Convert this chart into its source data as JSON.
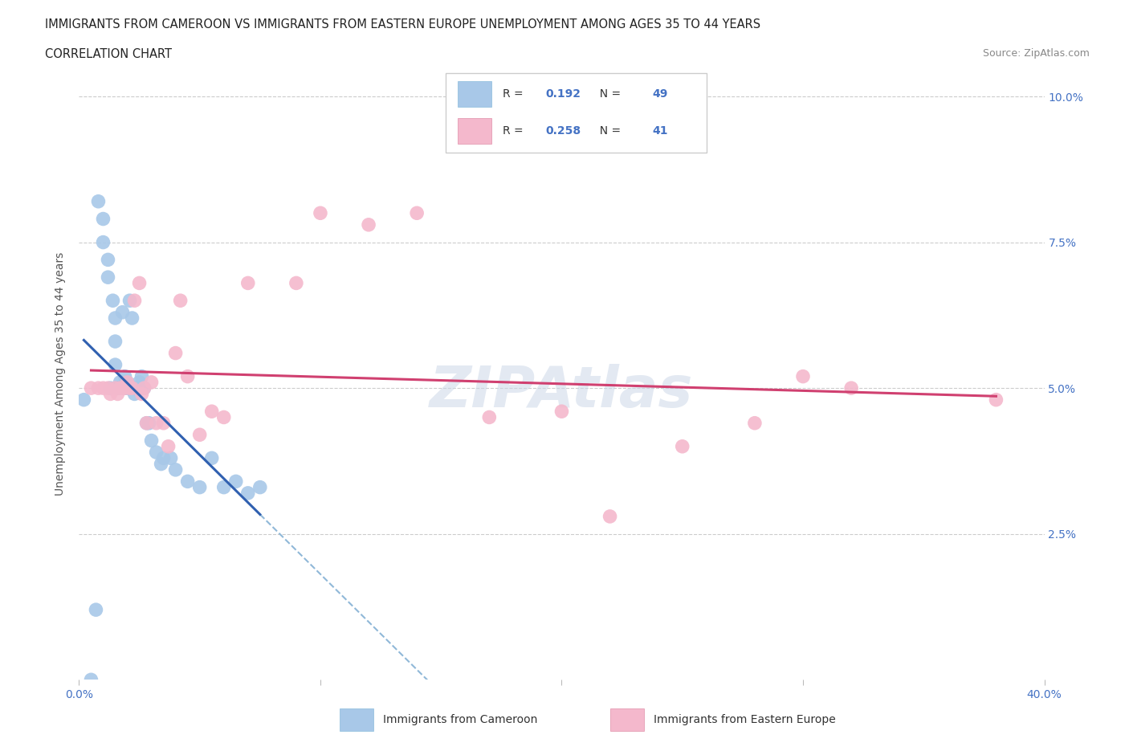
{
  "title_line1": "IMMIGRANTS FROM CAMEROON VS IMMIGRANTS FROM EASTERN EUROPE UNEMPLOYMENT AMONG AGES 35 TO 44 YEARS",
  "title_line2": "CORRELATION CHART",
  "source_text": "Source: ZipAtlas.com",
  "ylabel": "Unemployment Among Ages 35 to 44 years",
  "xlim": [
    0.0,
    0.4
  ],
  "ylim": [
    0.0,
    0.105
  ],
  "cameroon_color": "#a8c8e8",
  "eastern_europe_color": "#f4b8cc",
  "cameroon_line_color": "#3060b0",
  "eastern_europe_line_color": "#d04070",
  "dashed_line_color": "#90b8d8",
  "legend_R_cameroon": "0.192",
  "legend_N_cameroon": "49",
  "legend_R_eastern": "0.258",
  "legend_N_eastern": "41",
  "watermark_text": "ZIPAtlas",
  "cameroon_x": [
    0.002,
    0.005,
    0.007,
    0.008,
    0.01,
    0.01,
    0.012,
    0.012,
    0.013,
    0.014,
    0.015,
    0.015,
    0.015,
    0.016,
    0.016,
    0.017,
    0.017,
    0.018,
    0.018,
    0.019,
    0.019,
    0.02,
    0.02,
    0.021,
    0.021,
    0.022,
    0.022,
    0.023,
    0.023,
    0.024,
    0.025,
    0.025,
    0.026,
    0.027,
    0.028,
    0.029,
    0.03,
    0.032,
    0.034,
    0.035,
    0.038,
    0.04,
    0.045,
    0.05,
    0.055,
    0.06,
    0.065,
    0.07,
    0.075
  ],
  "cameroon_y": [
    0.048,
    0.0,
    0.012,
    0.082,
    0.079,
    0.075,
    0.072,
    0.069,
    0.05,
    0.065,
    0.062,
    0.058,
    0.054,
    0.05,
    0.05,
    0.05,
    0.051,
    0.063,
    0.05,
    0.05,
    0.052,
    0.051,
    0.05,
    0.065,
    0.05,
    0.062,
    0.05,
    0.05,
    0.049,
    0.05,
    0.051,
    0.05,
    0.052,
    0.05,
    0.044,
    0.044,
    0.041,
    0.039,
    0.037,
    0.038,
    0.038,
    0.036,
    0.034,
    0.033,
    0.038,
    0.033,
    0.034,
    0.032,
    0.033
  ],
  "eastern_x": [
    0.005,
    0.008,
    0.01,
    0.012,
    0.013,
    0.015,
    0.016,
    0.017,
    0.018,
    0.019,
    0.02,
    0.021,
    0.022,
    0.023,
    0.025,
    0.026,
    0.027,
    0.028,
    0.03,
    0.032,
    0.035,
    0.037,
    0.04,
    0.042,
    0.045,
    0.05,
    0.055,
    0.06,
    0.07,
    0.09,
    0.1,
    0.12,
    0.14,
    0.17,
    0.2,
    0.22,
    0.25,
    0.28,
    0.3,
    0.32,
    0.38
  ],
  "eastern_y": [
    0.05,
    0.05,
    0.05,
    0.05,
    0.049,
    0.05,
    0.049,
    0.05,
    0.05,
    0.05,
    0.051,
    0.05,
    0.05,
    0.065,
    0.068,
    0.049,
    0.05,
    0.044,
    0.051,
    0.044,
    0.044,
    0.04,
    0.056,
    0.065,
    0.052,
    0.042,
    0.046,
    0.045,
    0.068,
    0.068,
    0.08,
    0.078,
    0.08,
    0.045,
    0.046,
    0.028,
    0.04,
    0.044,
    0.052,
    0.05,
    0.048
  ]
}
